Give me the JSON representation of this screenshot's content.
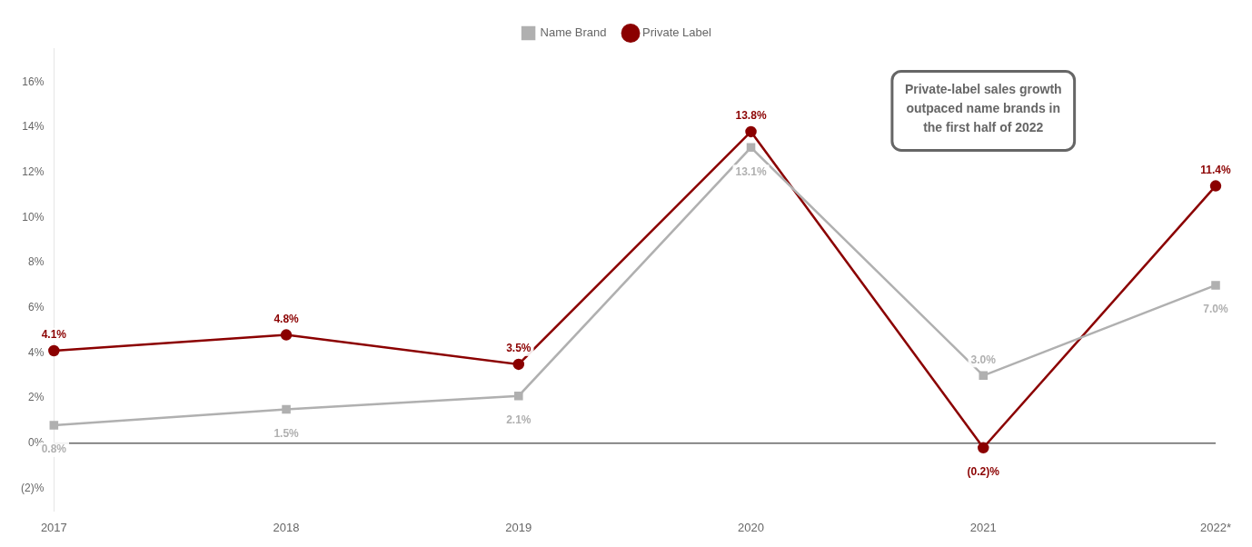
{
  "chart_data": {
    "type": "line",
    "categories": [
      "2017",
      "2018",
      "2019",
      "2020",
      "2021",
      "2022*"
    ],
    "series": [
      {
        "name": "Name Brand",
        "color": "#b0b0b0",
        "marker": "square",
        "values": [
          0.8,
          1.5,
          2.1,
          13.1,
          3.0,
          7.0
        ],
        "value_labels": [
          "0.8%",
          "1.5%",
          "2.1%",
          "13.1%",
          "3.0%",
          "7.0%"
        ]
      },
      {
        "name": "Private Label",
        "color": "#8b0000",
        "marker": "circle",
        "values": [
          4.1,
          4.8,
          3.5,
          13.8,
          -0.2,
          11.4
        ],
        "value_labels": [
          "4.1%",
          "4.8%",
          "3.5%",
          "13.8%",
          "(0.2)%",
          "11.4%"
        ]
      }
    ],
    "ylim": [
      -3.0,
      17.5
    ],
    "yticks": [
      {
        "value": -2,
        "label": "(2)%"
      },
      {
        "value": 0,
        "label": "0%"
      },
      {
        "value": 2,
        "label": "2%"
      },
      {
        "value": 4,
        "label": "4%"
      },
      {
        "value": 6,
        "label": "6%"
      },
      {
        "value": 8,
        "label": "8%"
      },
      {
        "value": 10,
        "label": "10%"
      },
      {
        "value": 12,
        "label": "12%"
      },
      {
        "value": 14,
        "label": "14%"
      },
      {
        "value": 16,
        "label": "16%"
      }
    ],
    "annotations": [
      "Private-label sales growth\noutpaced name brands in\nthe first half of 2022"
    ],
    "data_labels": true,
    "grid": false,
    "legend": "top"
  }
}
